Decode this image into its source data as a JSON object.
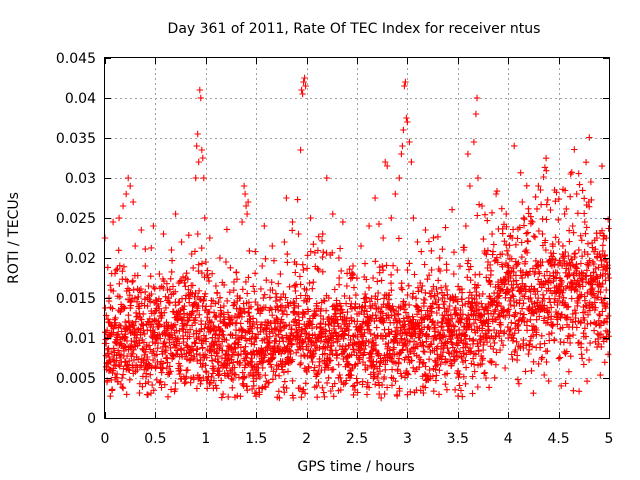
{
  "chart_data": {
    "type": "scatter",
    "title": "Day 361 of 2011, Rate Of TEC Index for receiver ntus",
    "xlabel": "GPS time / hours",
    "ylabel": "ROTI / TECUs",
    "xlim": [
      0,
      5
    ],
    "ylim": [
      0,
      0.045
    ],
    "xticks": [
      0,
      0.5,
      1,
      1.5,
      2,
      2.5,
      3,
      3.5,
      4,
      4.5,
      5
    ],
    "xtick_labels": [
      "0",
      "0.5",
      "1",
      "1.5",
      "2",
      "2.5",
      "3",
      "3.5",
      "4",
      "4.5",
      "5"
    ],
    "yticks": [
      0,
      0.005,
      0.01,
      0.015,
      0.02,
      0.025,
      0.03,
      0.035,
      0.04,
      0.045
    ],
    "ytick_labels": [
      "0",
      "0.005",
      "0.01",
      "0.015",
      "0.02",
      "0.025",
      "0.03",
      "0.035",
      "0.04",
      "0.045"
    ],
    "grid": true,
    "marker": "+",
    "color": "#ff0000",
    "series": [
      {
        "name": "ROTI",
        "points": [
          [
            0.0,
            0.0225
          ],
          [
            0.02,
            0.0045
          ],
          [
            0.03,
            0.008
          ],
          [
            0.04,
            0.015
          ],
          [
            0.05,
            0.006
          ],
          [
            0.06,
            0.0115
          ],
          [
            0.07,
            0.0035
          ],
          [
            0.08,
            0.0245
          ],
          [
            0.09,
            0.007
          ],
          [
            0.1,
            0.0095
          ],
          [
            0.11,
            0.0185
          ],
          [
            0.12,
            0.0055
          ],
          [
            0.13,
            0.0105
          ],
          [
            0.14,
            0.025
          ],
          [
            0.15,
            0.0075
          ],
          [
            0.16,
            0.0135
          ],
          [
            0.17,
            0.005
          ],
          [
            0.18,
            0.0265
          ],
          [
            0.19,
            0.009
          ],
          [
            0.2,
            0.012
          ],
          [
            0.21,
            0.028
          ],
          [
            0.22,
            0.0065
          ],
          [
            0.23,
            0.03
          ],
          [
            0.24,
            0.011
          ],
          [
            0.25,
            0.029
          ],
          [
            0.26,
            0.008
          ],
          [
            0.27,
            0.017
          ],
          [
            0.28,
            0.027
          ],
          [
            0.29,
            0.0095
          ],
          [
            0.3,
            0.0215
          ],
          [
            0.32,
            0.006
          ],
          [
            0.34,
            0.014
          ],
          [
            0.36,
            0.0235
          ],
          [
            0.38,
            0.0085
          ],
          [
            0.4,
            0.019
          ],
          [
            0.42,
            0.011
          ],
          [
            0.44,
            0.0065
          ],
          [
            0.46,
            0.0155
          ],
          [
            0.48,
            0.024
          ],
          [
            0.5,
            0.01
          ],
          [
            0.52,
            0.007
          ],
          [
            0.54,
            0.018
          ],
          [
            0.56,
            0.0125
          ],
          [
            0.58,
            0.023
          ],
          [
            0.6,
            0.009
          ],
          [
            0.62,
            0.016
          ],
          [
            0.64,
            0.0055
          ],
          [
            0.66,
            0.021
          ],
          [
            0.68,
            0.0115
          ],
          [
            0.7,
            0.0255
          ],
          [
            0.72,
            0.008
          ],
          [
            0.74,
            0.0145
          ],
          [
            0.76,
            0.022
          ],
          [
            0.78,
            0.0095
          ],
          [
            0.8,
            0.0175
          ],
          [
            0.82,
            0.006
          ],
          [
            0.84,
            0.013
          ],
          [
            0.86,
            0.0205
          ],
          [
            0.88,
            0.0105
          ],
          [
            0.9,
            0.03
          ],
          [
            0.91,
            0.034
          ],
          [
            0.92,
            0.0355
          ],
          [
            0.93,
            0.032
          ],
          [
            0.94,
            0.041
          ],
          [
            0.95,
            0.04
          ],
          [
            0.96,
            0.0335
          ],
          [
            0.97,
            0.0325
          ],
          [
            0.98,
            0.03
          ],
          [
            0.99,
            0.025
          ],
          [
            1.0,
            0.0195
          ],
          [
            1.02,
            0.0085
          ],
          [
            1.04,
            0.0225
          ],
          [
            1.06,
            0.012
          ],
          [
            1.08,
            0.006
          ],
          [
            1.1,
            0.0165
          ],
          [
            1.12,
            0.01
          ],
          [
            1.14,
            0.02
          ],
          [
            1.16,
            0.0075
          ],
          [
            1.18,
            0.014
          ],
          [
            1.2,
            0.0195
          ],
          [
            1.22,
            0.009
          ],
          [
            1.24,
            0.0125
          ],
          [
            1.26,
            0.006
          ],
          [
            1.28,
            0.017
          ],
          [
            1.3,
            0.011
          ],
          [
            1.32,
            0.008
          ],
          [
            1.34,
            0.015
          ],
          [
            1.36,
            0.0245
          ],
          [
            1.38,
            0.029
          ],
          [
            1.39,
            0.028
          ],
          [
            1.4,
            0.0265
          ],
          [
            1.41,
            0.0255
          ],
          [
            1.42,
            0.027
          ],
          [
            1.44,
            0.012
          ],
          [
            1.46,
            0.007
          ],
          [
            1.48,
            0.0095
          ],
          [
            1.5,
            0.006
          ],
          [
            1.52,
            0.0135
          ],
          [
            1.54,
            0.008
          ],
          [
            1.56,
            0.019
          ],
          [
            1.58,
            0.024
          ],
          [
            1.6,
            0.0105
          ],
          [
            1.62,
            0.007
          ],
          [
            1.64,
            0.016
          ],
          [
            1.66,
            0.0215
          ],
          [
            1.68,
            0.009
          ],
          [
            1.7,
            0.0125
          ],
          [
            1.72,
            0.0065
          ],
          [
            1.74,
            0.018
          ],
          [
            1.76,
            0.01
          ],
          [
            1.78,
            0.022
          ],
          [
            1.8,
            0.0275
          ],
          [
            1.82,
            0.014
          ],
          [
            1.84,
            0.008
          ],
          [
            1.86,
            0.0245
          ],
          [
            1.88,
            0.0195
          ],
          [
            1.9,
            0.011
          ],
          [
            1.92,
            0.023
          ],
          [
            1.94,
            0.0335
          ],
          [
            1.95,
            0.041
          ],
          [
            1.96,
            0.0405
          ],
          [
            1.97,
            0.042
          ],
          [
            1.98,
            0.0425
          ],
          [
            1.99,
            0.0415
          ],
          [
            2.0,
            0.016
          ],
          [
            2.02,
            0.0095
          ],
          [
            2.04,
            0.025
          ],
          [
            2.06,
            0.007
          ],
          [
            2.08,
            0.013
          ],
          [
            2.1,
            0.004
          ],
          [
            2.12,
            0.0185
          ],
          [
            2.14,
            0.0105
          ],
          [
            2.16,
            0.023
          ],
          [
            2.18,
            0.006
          ],
          [
            2.2,
            0.03
          ],
          [
            2.22,
            0.015
          ],
          [
            2.24,
            0.009
          ],
          [
            2.26,
            0.0255
          ],
          [
            2.28,
            0.012
          ],
          [
            2.3,
            0.0075
          ],
          [
            2.32,
            0.02
          ],
          [
            2.34,
            0.014
          ],
          [
            2.36,
            0.0245
          ],
          [
            2.38,
            0.0085
          ],
          [
            2.4,
            0.0165
          ],
          [
            2.42,
            0.011
          ],
          [
            2.44,
            0.006
          ],
          [
            2.46,
            0.019
          ],
          [
            2.48,
            0.0035
          ],
          [
            2.5,
            0.013
          ],
          [
            2.52,
            0.0095
          ],
          [
            2.54,
            0.0215
          ],
          [
            2.56,
            0.007
          ],
          [
            2.58,
            0.0155
          ],
          [
            2.6,
            0.0115
          ],
          [
            2.62,
            0.024
          ],
          [
            2.64,
            0.008
          ],
          [
            2.66,
            0.0175
          ],
          [
            2.68,
            0.0275
          ],
          [
            2.7,
            0.005
          ],
          [
            2.72,
            0.003
          ],
          [
            2.74,
            0.0025
          ],
          [
            2.76,
            0.0225
          ],
          [
            2.78,
            0.032
          ],
          [
            2.8,
            0.0315
          ],
          [
            2.82,
            0.014
          ],
          [
            2.84,
            0.025
          ],
          [
            2.86,
            0.0095
          ],
          [
            2.88,
            0.028
          ],
          [
            2.9,
            0.0185
          ],
          [
            2.92,
            0.03
          ],
          [
            2.94,
            0.033
          ],
          [
            2.95,
            0.034
          ],
          [
            2.96,
            0.036
          ],
          [
            2.97,
            0.0415
          ],
          [
            2.98,
            0.042
          ],
          [
            2.99,
            0.0375
          ],
          [
            3.0,
            0.037
          ],
          [
            3.02,
            0.0345
          ],
          [
            3.04,
            0.032
          ],
          [
            3.06,
            0.025
          ],
          [
            3.08,
            0.0105
          ],
          [
            3.1,
            0.022
          ],
          [
            3.12,
            0.007
          ],
          [
            3.14,
            0.016
          ],
          [
            3.16,
            0.009
          ],
          [
            3.18,
            0.0235
          ],
          [
            3.2,
            0.0125
          ],
          [
            3.22,
            0.006
          ],
          [
            3.24,
            0.0185
          ],
          [
            3.26,
            0.01
          ],
          [
            3.28,
            0.0145
          ],
          [
            3.3,
            0.0075
          ],
          [
            3.32,
            0.02
          ],
          [
            3.34,
            0.012
          ],
          [
            3.36,
            0.009
          ],
          [
            3.38,
            0.0165
          ],
          [
            3.4,
            0.011
          ],
          [
            3.42,
            0.014
          ],
          [
            3.44,
            0.008
          ],
          [
            3.46,
            0.018
          ],
          [
            3.48,
            0.013
          ],
          [
            3.5,
            0.01
          ],
          [
            3.52,
            0.016
          ],
          [
            3.54,
            0.0075
          ],
          [
            3.56,
            0.021
          ],
          [
            3.58,
            0.024
          ],
          [
            3.6,
            0.033
          ],
          [
            3.62,
            0.029
          ],
          [
            3.64,
            0.015
          ],
          [
            3.66,
            0.0345
          ],
          [
            3.68,
            0.038
          ],
          [
            3.69,
            0.04
          ],
          [
            3.7,
            0.03
          ],
          [
            3.72,
            0.0125
          ],
          [
            3.74,
            0.0265
          ],
          [
            3.76,
            0.0095
          ],
          [
            3.78,
            0.005
          ],
          [
            3.8,
            0.0195
          ],
          [
            3.82,
            0.014
          ],
          [
            3.84,
            0.023
          ],
          [
            3.86,
            0.011
          ],
          [
            3.88,
            0.028
          ],
          [
            3.9,
            0.017
          ],
          [
            3.92,
            0.0085
          ],
          [
            3.94,
            0.0205
          ],
          [
            3.96,
            0.0135
          ],
          [
            3.98,
            0.0255
          ],
          [
            4.0,
            0.01
          ],
          [
            4.02,
            0.0175
          ],
          [
            4.04,
            0.0225
          ],
          [
            4.06,
            0.014
          ],
          [
            4.08,
            0.019
          ],
          [
            4.1,
            0.009
          ],
          [
            4.12,
            0.016
          ],
          [
            4.14,
            0.027
          ],
          [
            4.16,
            0.012
          ],
          [
            4.18,
            0.021
          ],
          [
            4.2,
            0.008
          ],
          [
            4.22,
            0.015
          ],
          [
            4.24,
            0.0245
          ],
          [
            4.26,
            0.018
          ],
          [
            4.28,
            0.011
          ],
          [
            4.3,
            0.029
          ],
          [
            4.32,
            0.0285
          ],
          [
            4.34,
            0.023
          ],
          [
            4.36,
            0.0135
          ],
          [
            4.38,
            0.007
          ],
          [
            4.4,
            0.0195
          ],
          [
            4.42,
            0.026
          ],
          [
            4.44,
            0.0115
          ],
          [
            4.46,
            0.0285
          ],
          [
            4.48,
            0.0165
          ],
          [
            4.5,
            0.022
          ],
          [
            4.52,
            0.0095
          ],
          [
            4.54,
            0.0145
          ],
          [
            4.56,
            0.0255
          ],
          [
            4.58,
            0.0125
          ],
          [
            4.6,
            0.0185
          ],
          [
            4.62,
            0.0305
          ],
          [
            4.64,
            0.024
          ],
          [
            4.66,
            0.016
          ],
          [
            4.68,
            0.028
          ],
          [
            4.7,
            0.021
          ],
          [
            4.72,
            0.012
          ],
          [
            4.74,
            0.0175
          ],
          [
            4.76,
            0.0245
          ],
          [
            4.78,
            0.014
          ],
          [
            4.8,
            0.027
          ],
          [
            4.82,
            0.0295
          ],
          [
            4.84,
            0.0195
          ],
          [
            4.86,
            0.0135
          ],
          [
            4.88,
            0.0225
          ],
          [
            4.9,
            0.0165
          ],
          [
            4.92,
            0.0105
          ],
          [
            4.94,
            0.0185
          ],
          [
            4.96,
            0.015
          ],
          [
            4.98,
            0.012
          ]
        ]
      }
    ],
    "background_band": {
      "x_segments": [
        0,
        0.5,
        1,
        1.5,
        2,
        2.5,
        3,
        3.5,
        4,
        4.5,
        5
      ],
      "center": [
        0.0085,
        0.01,
        0.0095,
        0.0085,
        0.01,
        0.0095,
        0.0095,
        0.0105,
        0.014,
        0.0145,
        0.0155
      ],
      "spread": [
        0.0055,
        0.006,
        0.006,
        0.0055,
        0.006,
        0.006,
        0.006,
        0.0065,
        0.007,
        0.0075,
        0.0075
      ],
      "count": 3200
    }
  }
}
